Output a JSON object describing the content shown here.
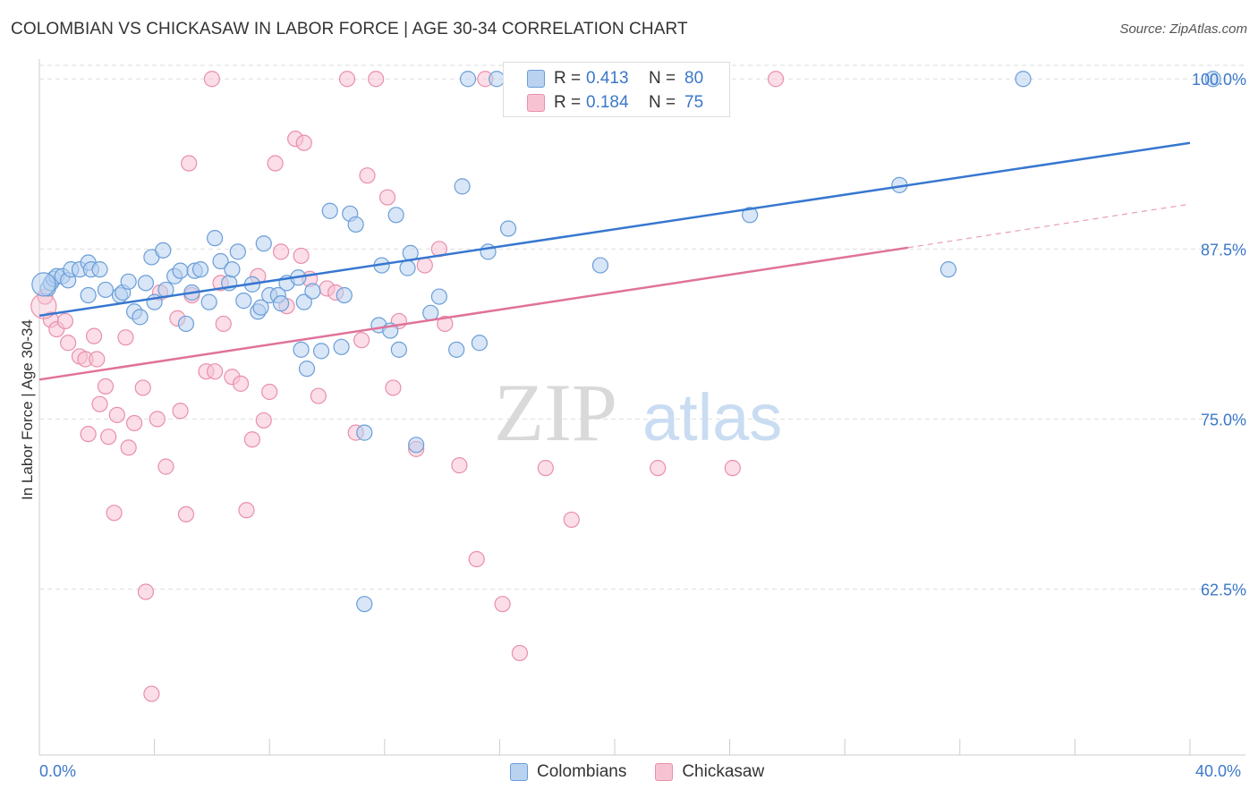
{
  "title": "COLOMBIAN VS CHICKASAW IN LABOR FORCE | AGE 30-34 CORRELATION CHART",
  "source": "Source: ZipAtlas.com",
  "watermark": {
    "zip": "ZIP",
    "atlas": "atlas"
  },
  "colors": {
    "blue_fill": "#b8d2f0",
    "blue_stroke": "#6a9ed8",
    "blue_line": "#3677d0",
    "pink_fill": "#f7c3d3",
    "pink_stroke": "#e98fac",
    "pink_line": "#e0729a",
    "tick_text": "#3b78c9",
    "grid": "#dddddd"
  },
  "legend": {
    "r_label": "R =",
    "n_label": "N =",
    "rows": [
      {
        "series": "Colombians",
        "r": "0.413",
        "n": "80"
      },
      {
        "series": "Chickasaw",
        "r": "0.184",
        "n": "75"
      }
    ]
  },
  "chart_data": {
    "type": "scatter",
    "title": "COLOMBIAN VS CHICKASAW IN LABOR FORCE | AGE 30-34 CORRELATION CHART",
    "xlabel": "",
    "ylabel": "In Labor Force | Age 30-34",
    "x_tick_labels": [
      "0.0%",
      "40.0%"
    ],
    "y_tick_labels": [
      "100.0%",
      "87.5%",
      "75.0%",
      "62.5%"
    ],
    "y_ticks": [
      100.0,
      87.5,
      75.0,
      62.5
    ],
    "xlim": [
      0,
      40
    ],
    "ylim": [
      50.3,
      101.2
    ],
    "grid": true,
    "legend_position": "bottom",
    "series": [
      {
        "name": "Colombians",
        "trend": {
          "x": [
            0,
            40
          ],
          "y": [
            82.6,
            95.3
          ]
        },
        "points": [
          [
            0.3,
            84.6
          ],
          [
            0.4,
            85.0
          ],
          [
            0.5,
            85.3
          ],
          [
            0.6,
            85.5
          ],
          [
            0.8,
            85.5
          ],
          [
            1.0,
            85.2
          ],
          [
            1.1,
            86.0
          ],
          [
            1.4,
            86.0
          ],
          [
            1.7,
            86.5
          ],
          [
            1.8,
            86.0
          ],
          [
            2.1,
            86.0
          ],
          [
            1.7,
            84.1
          ],
          [
            2.3,
            84.5
          ],
          [
            2.8,
            84.1
          ],
          [
            2.9,
            84.3
          ],
          [
            3.1,
            85.1
          ],
          [
            3.3,
            82.9
          ],
          [
            3.5,
            82.5
          ],
          [
            3.7,
            85.0
          ],
          [
            3.9,
            86.9
          ],
          [
            4.0,
            83.6
          ],
          [
            4.3,
            87.4
          ],
          [
            4.4,
            84.5
          ],
          [
            4.7,
            85.5
          ],
          [
            4.9,
            85.9
          ],
          [
            5.1,
            82.0
          ],
          [
            5.3,
            84.3
          ],
          [
            5.4,
            85.9
          ],
          [
            5.6,
            86.0
          ],
          [
            5.9,
            83.6
          ],
          [
            6.1,
            88.3
          ],
          [
            6.3,
            86.6
          ],
          [
            6.6,
            85.0
          ],
          [
            6.7,
            86.0
          ],
          [
            6.9,
            87.3
          ],
          [
            7.1,
            83.7
          ],
          [
            7.4,
            84.9
          ],
          [
            7.6,
            82.9
          ],
          [
            7.7,
            83.2
          ],
          [
            7.8,
            87.9
          ],
          [
            8.0,
            84.1
          ],
          [
            8.3,
            84.1
          ],
          [
            8.4,
            83.5
          ],
          [
            8.6,
            85.0
          ],
          [
            9.0,
            85.4
          ],
          [
            9.1,
            80.1
          ],
          [
            9.2,
            83.6
          ],
          [
            9.3,
            78.7
          ],
          [
            9.5,
            84.4
          ],
          [
            9.8,
            80.0
          ],
          [
            10.1,
            90.3
          ],
          [
            10.5,
            80.3
          ],
          [
            10.6,
            84.1
          ],
          [
            10.8,
            90.1
          ],
          [
            11.0,
            89.3
          ],
          [
            11.3,
            74.0
          ],
          [
            11.8,
            81.9
          ],
          [
            11.9,
            86.3
          ],
          [
            12.2,
            81.5
          ],
          [
            12.4,
            90.0
          ],
          [
            12.5,
            80.1
          ],
          [
            12.8,
            86.1
          ],
          [
            12.9,
            87.2
          ],
          [
            13.1,
            73.1
          ],
          [
            13.6,
            82.8
          ],
          [
            13.9,
            84.0
          ],
          [
            14.5,
            80.1
          ],
          [
            14.7,
            92.1
          ],
          [
            14.9,
            100.0
          ],
          [
            15.3,
            80.6
          ],
          [
            15.6,
            87.3
          ],
          [
            15.9,
            100.0
          ],
          [
            16.3,
            89.0
          ],
          [
            11.3,
            61.4
          ],
          [
            19.5,
            86.3
          ],
          [
            22.5,
            100.0
          ],
          [
            24.7,
            90.0
          ],
          [
            29.9,
            92.2
          ],
          [
            31.6,
            86.0
          ],
          [
            34.2,
            100.0
          ],
          [
            40.8,
            100.0
          ]
        ]
      },
      {
        "name": "Chickasaw",
        "trend": {
          "x": [
            0,
            30.2
          ],
          "y": [
            77.9,
            87.6
          ],
          "dashed_extension": {
            "x": [
              30.2,
              40
            ],
            "y": [
              87.6,
              90.8
            ]
          }
        },
        "points": [
          [
            0.2,
            84.0
          ],
          [
            0.4,
            82.3
          ],
          [
            0.6,
            81.6
          ],
          [
            0.9,
            82.2
          ],
          [
            1.0,
            80.6
          ],
          [
            1.4,
            79.6
          ],
          [
            1.6,
            79.4
          ],
          [
            1.7,
            73.9
          ],
          [
            1.9,
            81.1
          ],
          [
            2.0,
            79.4
          ],
          [
            2.1,
            76.1
          ],
          [
            2.3,
            77.4
          ],
          [
            2.4,
            73.7
          ],
          [
            2.6,
            68.1
          ],
          [
            2.7,
            75.3
          ],
          [
            3.0,
            81.0
          ],
          [
            3.1,
            72.9
          ],
          [
            3.3,
            74.7
          ],
          [
            3.6,
            77.3
          ],
          [
            3.7,
            62.3
          ],
          [
            3.9,
            54.8
          ],
          [
            4.1,
            75.0
          ],
          [
            4.2,
            84.3
          ],
          [
            4.4,
            71.5
          ],
          [
            4.8,
            82.4
          ],
          [
            4.9,
            75.6
          ],
          [
            5.1,
            68.0
          ],
          [
            5.2,
            93.8
          ],
          [
            5.3,
            84.1
          ],
          [
            5.8,
            78.5
          ],
          [
            6.0,
            100.0
          ],
          [
            6.1,
            78.5
          ],
          [
            6.3,
            85.0
          ],
          [
            6.4,
            82.0
          ],
          [
            6.7,
            78.1
          ],
          [
            7.0,
            77.6
          ],
          [
            7.2,
            68.3
          ],
          [
            7.4,
            73.5
          ],
          [
            7.6,
            85.5
          ],
          [
            7.8,
            74.9
          ],
          [
            8.0,
            77.0
          ],
          [
            8.2,
            93.8
          ],
          [
            8.4,
            87.3
          ],
          [
            8.6,
            83.3
          ],
          [
            8.9,
            95.6
          ],
          [
            9.1,
            87.0
          ],
          [
            9.2,
            95.3
          ],
          [
            9.4,
            85.3
          ],
          [
            9.7,
            76.7
          ],
          [
            10.0,
            84.6
          ],
          [
            10.3,
            84.3
          ],
          [
            10.7,
            100.0
          ],
          [
            11.0,
            74.0
          ],
          [
            11.2,
            80.8
          ],
          [
            11.4,
            92.9
          ],
          [
            11.7,
            100.0
          ],
          [
            12.1,
            91.3
          ],
          [
            12.3,
            77.3
          ],
          [
            12.5,
            82.2
          ],
          [
            13.1,
            72.8
          ],
          [
            13.4,
            86.3
          ],
          [
            13.9,
            87.5
          ],
          [
            14.1,
            82.0
          ],
          [
            14.6,
            71.6
          ],
          [
            15.2,
            64.7
          ],
          [
            15.5,
            100.0
          ],
          [
            16.1,
            61.4
          ],
          [
            16.7,
            57.8
          ],
          [
            17.0,
            100.0
          ],
          [
            17.6,
            71.4
          ],
          [
            18.5,
            67.6
          ],
          [
            21.5,
            71.4
          ],
          [
            24.1,
            71.4
          ],
          [
            25.6,
            100.0
          ]
        ]
      }
    ]
  }
}
